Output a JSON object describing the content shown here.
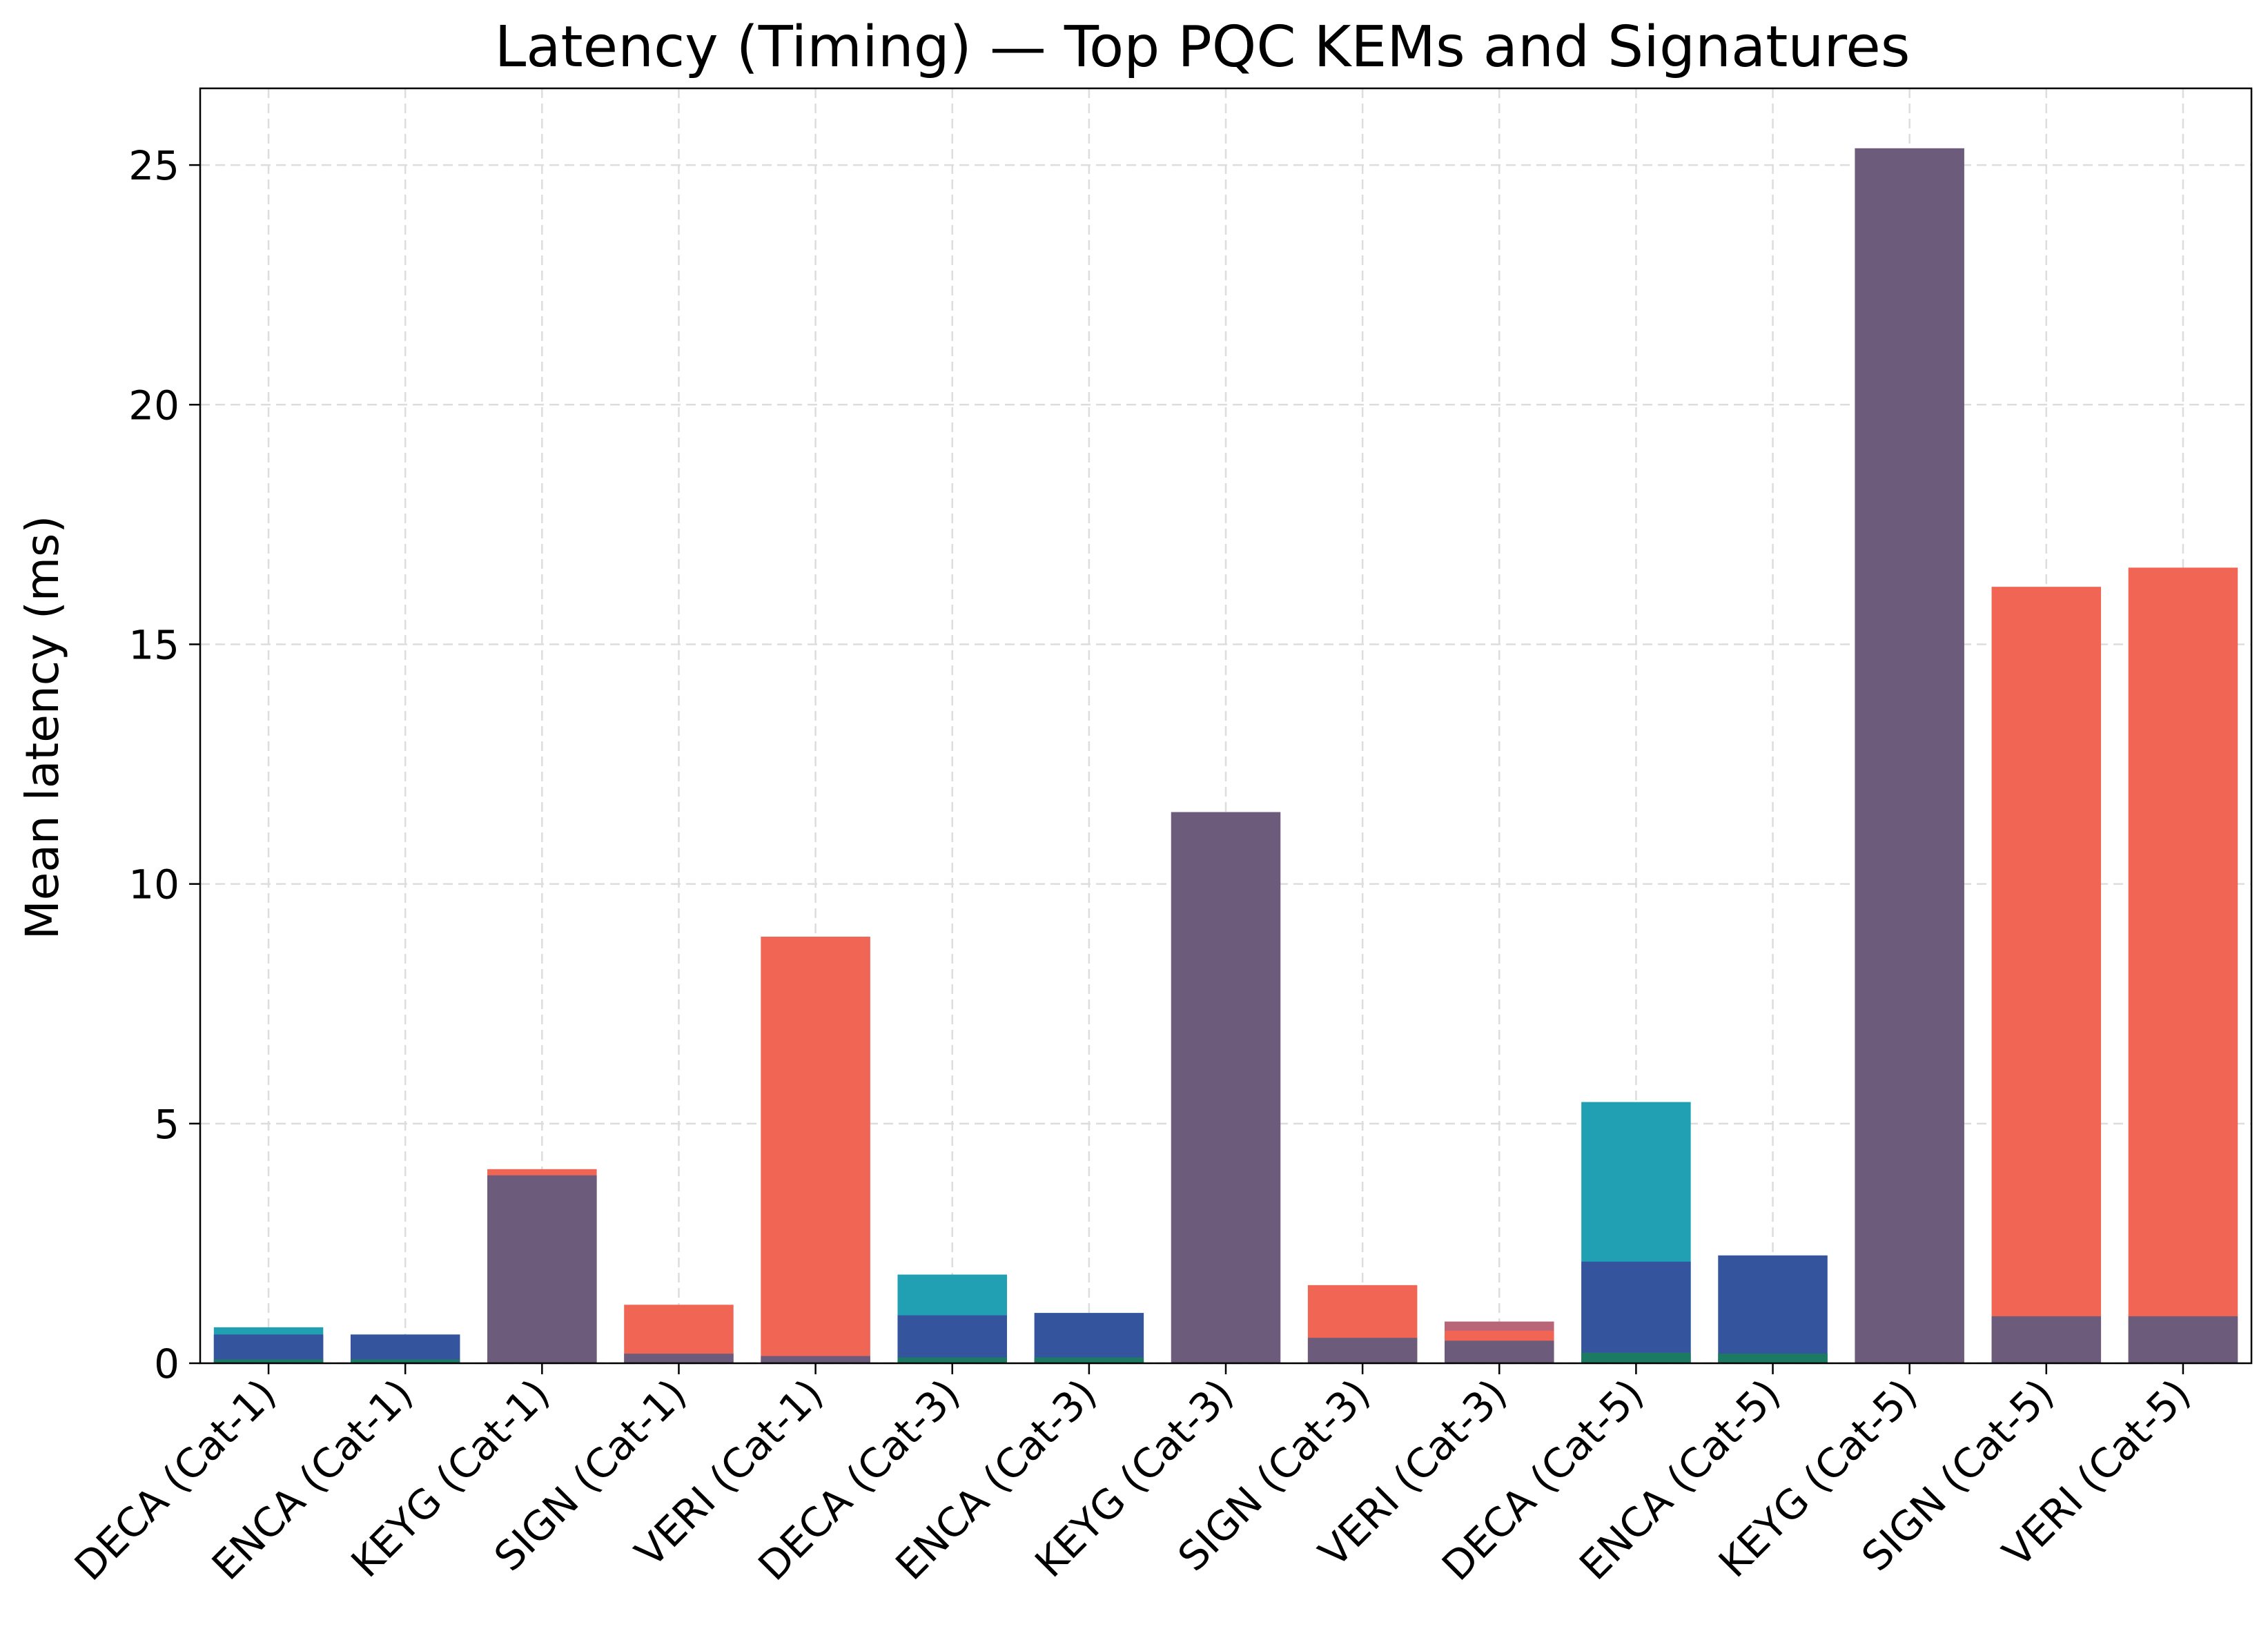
{
  "chart_data": {
    "type": "bar",
    "title": "Latency (Timing) — Top PQC KEMs and Signatures",
    "xlabel": "",
    "ylabel": "Mean latency (ms)",
    "ylim": [
      0,
      26.6
    ],
    "yticks": [
      0,
      5,
      10,
      15,
      20,
      25
    ],
    "grid": true,
    "legend": "none",
    "categories": [
      "DECA (Cat-1)",
      "ENCA (Cat-1)",
      "KEYG (Cat-1)",
      "SIGN (Cat-1)",
      "VERI (Cat-1)",
      "DECA (Cat-3)",
      "ENCA (Cat-3)",
      "KEYG (Cat-3)",
      "SIGN (Cat-3)",
      "VERI (Cat-3)",
      "DECA (Cat-5)",
      "ENCA (Cat-5)",
      "KEYG (Cat-5)",
      "SIGN (Cat-5)",
      "VERI (Cat-5)"
    ],
    "layers": [
      {
        "color": "#21a0b4",
        "values": [
          0.75,
          0,
          0,
          0,
          0,
          1.85,
          0,
          0,
          0,
          0,
          5.45,
          0,
          0,
          0,
          0
        ]
      },
      {
        "color": "#f06553",
        "values": [
          0,
          0,
          4.05,
          1.22,
          8.9,
          0,
          0,
          0,
          1.63,
          0,
          0,
          0,
          0,
          16.2,
          16.6
        ]
      },
      {
        "color": "#b86577",
        "values": [
          0,
          0,
          0,
          0,
          0,
          0,
          0,
          0,
          0,
          0.87,
          0,
          0,
          0,
          0,
          0
        ]
      },
      {
        "color": "#f06553",
        "values": [
          0,
          0,
          0,
          0,
          0,
          0,
          0,
          0,
          0,
          0.68,
          0,
          0,
          0,
          0,
          0
        ]
      },
      {
        "color": "#6d5b7b",
        "values": [
          0,
          0,
          3.92,
          0,
          0,
          0,
          0,
          11.5,
          0,
          0,
          0,
          0,
          25.35,
          0,
          0
        ]
      },
      {
        "color": "#34559e",
        "values": [
          0.6,
          0.6,
          0,
          0,
          0,
          1.0,
          1.05,
          0,
          0,
          0,
          2.12,
          2.25,
          0,
          0,
          0
        ]
      },
      {
        "color": "#6d5b7b",
        "values": [
          0,
          0,
          0,
          0.2,
          0.15,
          0,
          0,
          0,
          0.53,
          0.47,
          0,
          0,
          0,
          0.98,
          0.98
        ]
      },
      {
        "color": "#1d7a62",
        "values": [
          0.08,
          0.08,
          0,
          0,
          0,
          0.12,
          0.12,
          0,
          0,
          0,
          0.22,
          0.2,
          0,
          0,
          0
        ]
      }
    ]
  }
}
